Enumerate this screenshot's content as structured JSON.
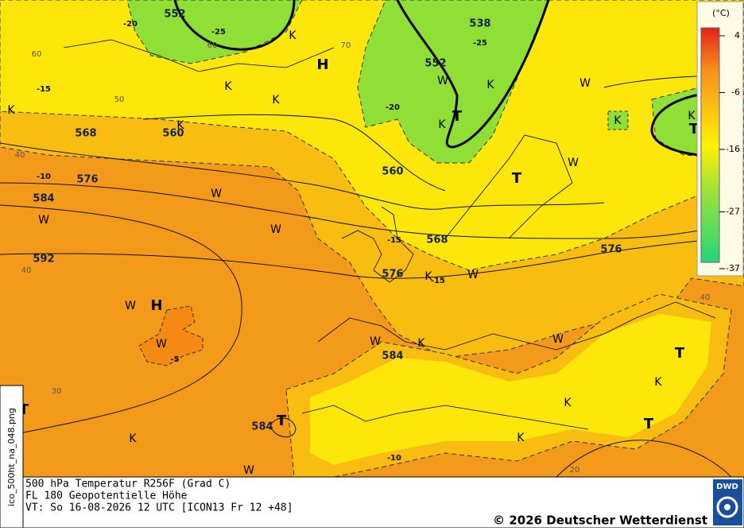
{
  "map": {
    "labels": [
      "552",
      "-25",
      "60",
      "-20",
      "538",
      "-25",
      "552",
      "70",
      "60",
      "-15",
      "50",
      "H",
      "K",
      "K",
      "K",
      "K",
      "W",
      "K",
      "W",
      "-20",
      "T",
      "K",
      "K",
      "K",
      "T",
      "568",
      "560",
      "K",
      "40",
      "-10",
      "576",
      "T",
      "W",
      "560",
      "584",
      "W",
      "W",
      "W",
      "568",
      "-15",
      "576",
      "592",
      "40",
      "576",
      "K",
      "-15",
      "W",
      "W",
      "H",
      "40",
      "W",
      "-5",
      "W",
      "584",
      "K",
      "W",
      "T",
      "30",
      "K",
      "T",
      "584",
      "T",
      "K",
      "T",
      "K",
      "K",
      "W",
      "-10",
      "20"
    ]
  },
  "legend": {
    "unit": "(°C)",
    "ticks": [
      4,
      -6,
      -16,
      -27,
      -37
    ]
  },
  "footer": {
    "lines": [
      "500 hPa Temperatur R256F (Grad C)",
      "FL 180 Geopotentielle Höhe",
      "VT: So 16-08-2026 12 UTC [ICON13 Fr 12 +48]"
    ],
    "copyright": "© 2026 Deutscher Wetterdienst",
    "logo": "DWD",
    "filename": "ico_500ht_na_048.png"
  }
}
